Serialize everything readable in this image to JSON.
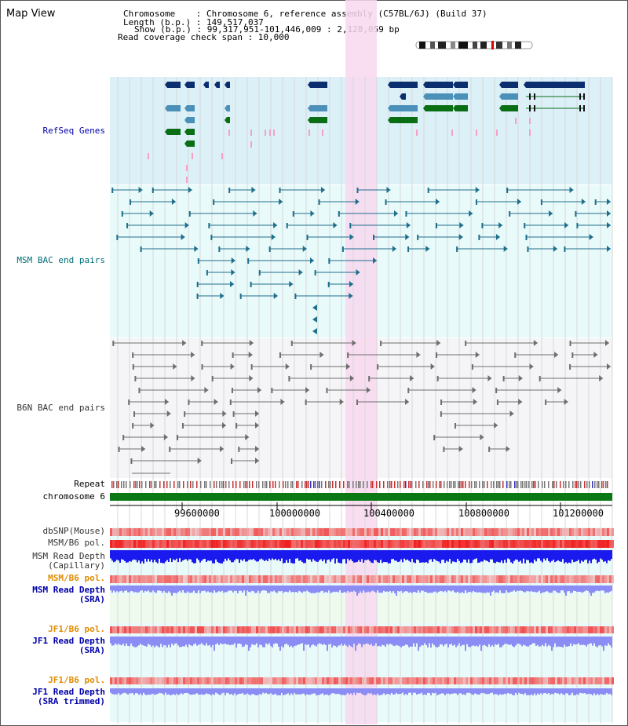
{
  "header": {
    "title": "Map View",
    "chromosome_line": "Chromosome    : Chromosome 6, reference assembly (C57BL/6J) (Build 37)",
    "length_line": "Length (b.p.) : 149,517,037",
    "show_line": "Show (b.p.) : 99,317,951-101,446,009 : 2,128,059 bp",
    "coverage_line": "Read coverage check span : 10,000"
  },
  "tracks": {
    "refseq": "RefSeq Genes",
    "msm_bac": "MSM BAC end pairs",
    "b6n_bac": "B6N BAC end pairs",
    "repeat": "Repeat",
    "chromosome": "chromosome 6",
    "dbsnp": "dbSNP(Mouse)",
    "msm_b6_pol_1": "MSM/B6 pol.",
    "msm_depth_cap_1": "MSM Read Depth",
    "msm_depth_cap_2": "(Capillary)",
    "msm_b6_pol_2": "MSM/B6 pol.",
    "msm_depth_sra_1": "MSM Read Depth",
    "msm_depth_sra_2": "(SRA)",
    "jf1_pol_1": "JF1/B6 pol.",
    "jf1_depth_sra_1": "JF1 Read Depth",
    "jf1_depth_sra_2": "(SRA)",
    "jf1_pol_2": "JF1/B6 pol.",
    "jf1_depth_trim_1": "JF1 Read Depth",
    "jf1_depth_trim_2": "(SRA trimmed)"
  },
  "axis": {
    "ticks": [
      "99600000",
      "100000000",
      "100400000",
      "100800000",
      "101200000"
    ]
  },
  "colors": {
    "refseq_bg": "#dcf0f8",
    "msm_bg": "#e8fafa",
    "b6n_bg": "#f5f5f8",
    "highlight": "#f8d8f0",
    "gene_navy": "#0a2e6e",
    "gene_steel": "#4a90b8",
    "gene_green": "#0a6e14",
    "msm_pair": "#1f6e8c",
    "b6n_pair": "#6e6e6e",
    "chromosome_bar": "#0a7814",
    "depth_blue": "#1a1aee",
    "depth_lavender": "#8c8cf5",
    "pol_red": "#f03c3c",
    "label_blue": "#0000aa",
    "label_teal": "#006e78",
    "label_orange": "#e08c00"
  }
}
